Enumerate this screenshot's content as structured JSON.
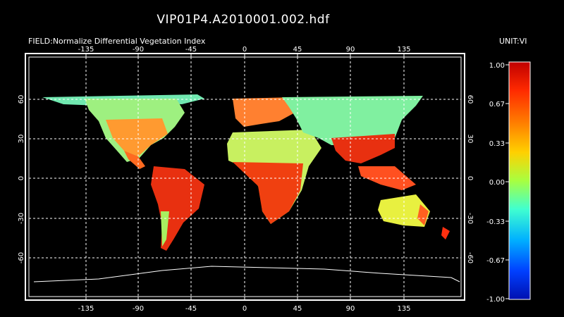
{
  "title": "VIP01P4.A2010001.002.hdf",
  "field_label": "FIELD:Normalize Differential Vegetation Index",
  "unit_label": "UNIT:VI",
  "longitude_ticks": [
    "-135",
    "-90",
    "-45",
    "0",
    "45",
    "90",
    "135"
  ],
  "latitude_ticks_left": [
    "60",
    "30",
    "0",
    "-30",
    "-60"
  ],
  "latitude_ticks_right": [
    "60",
    "30",
    "0",
    "-30",
    "-60"
  ],
  "colorbar": {
    "labels": [
      "1.00",
      "0.67",
      "0.33",
      "0.00",
      "-0.33",
      "-0.67",
      "-1.00"
    ],
    "colors": [
      "#d00000",
      "#ff3000",
      "#ff9000",
      "#ffe000",
      "#a0ff40",
      "#40ffc0",
      "#00c0ff",
      "#0060ff",
      "#0010c0"
    ]
  },
  "palette": {
    "background": "#000000",
    "grid": "#ffffff",
    "coast": "#ffffff"
  },
  "icons": {
    "map": "world-map-icon"
  }
}
